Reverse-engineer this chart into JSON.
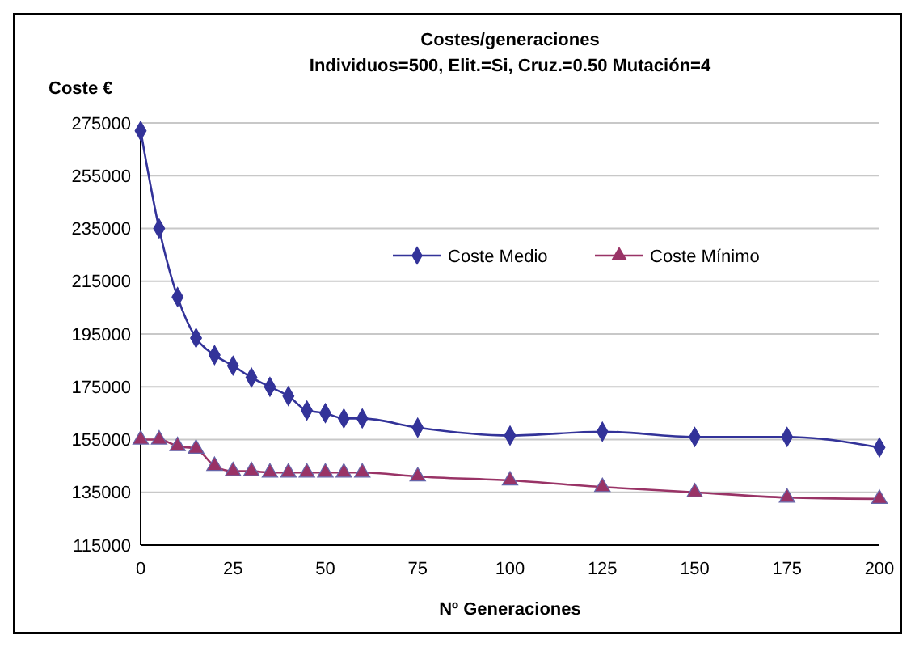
{
  "chart_data": {
    "type": "line",
    "title": "Costes/generaciones",
    "subtitle": "Individuos=500, Elit.=Si, Cruz.=0.50 Mutación=4",
    "xlabel": "Nº Generaciones",
    "ylabel": "Coste €",
    "x": [
      0,
      5,
      10,
      15,
      20,
      25,
      30,
      35,
      40,
      45,
      50,
      55,
      60,
      75,
      100,
      125,
      150,
      175,
      200
    ],
    "series": [
      {
        "name": "Coste Medio",
        "color": "#333399",
        "marker": "diamond",
        "values": [
          272000,
          235000,
          209000,
          193500,
          187000,
          183000,
          178500,
          175000,
          171500,
          166000,
          165000,
          163000,
          163000,
          159500,
          156500,
          158000,
          156000,
          156000,
          152000
        ]
      },
      {
        "name": "Coste Mínimo",
        "color": "#993366",
        "marker": "triangle",
        "values": [
          155000,
          155000,
          152500,
          151500,
          145000,
          143000,
          143000,
          142500,
          142500,
          142500,
          142500,
          142500,
          142500,
          141000,
          139500,
          137000,
          135000,
          133000,
          132500
        ]
      }
    ],
    "xlim": [
      0,
      200
    ],
    "xticks": [
      0,
      25,
      50,
      75,
      100,
      125,
      150,
      175,
      200
    ],
    "ylim": [
      115000,
      275000
    ],
    "yticks": [
      115000,
      135000,
      155000,
      175000,
      195000,
      215000,
      235000,
      255000,
      275000
    ],
    "grid": "y",
    "legend": "right",
    "line_style": "solid"
  }
}
